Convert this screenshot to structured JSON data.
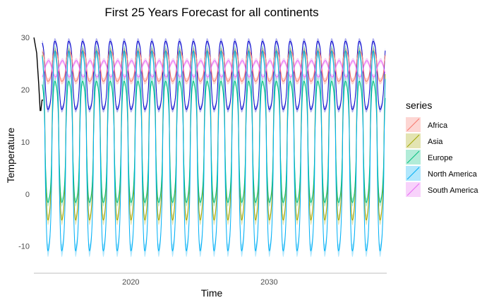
{
  "chart_data": {
    "type": "line",
    "title": "First 25 Years Forecast for all continents",
    "xlabel": "Time",
    "ylabel": "Temperature",
    "xlim": [
      2013.2,
      2038.6
    ],
    "ylim": [
      -14.5,
      31.5
    ],
    "x_ticks": [
      2020,
      2030
    ],
    "x_tick_labels": [
      "2020",
      "2030"
    ],
    "y_ticks": [
      -10,
      0,
      10,
      20,
      30
    ],
    "y_tick_labels": [
      "-10",
      "0",
      "10",
      "20",
      "30"
    ],
    "grid": false,
    "legend_title": "series",
    "legend_position": "right",
    "forecast_start": 2013.6,
    "forecast_end": 2038.4,
    "history": {
      "color": "#000000",
      "x": [
        2013.0,
        2013.2,
        2013.35,
        2013.45,
        2013.5,
        2013.58,
        2013.66
      ],
      "y": [
        30,
        27,
        21,
        16,
        16,
        18,
        18
      ]
    },
    "series": [
      {
        "name": "Africa",
        "color": "#f8766d",
        "low": 21.5,
        "high": 27.5,
        "peak": 0.55,
        "band": 0.6
      },
      {
        "name": "Asia",
        "color": "#a3a500",
        "low": -5.5,
        "high": 28.0,
        "peak": 0.55,
        "band": 1.0
      },
      {
        "name": "Europe",
        "color": "#00bf7d",
        "low": -2.0,
        "high": 22.0,
        "peak": 0.55,
        "band": 0.8
      },
      {
        "name": "North America",
        "color": "#00b0f6",
        "low": -11.5,
        "high": 28.0,
        "peak": 0.55,
        "band": 1.2
      },
      {
        "name": "South America",
        "color": "#e76bf3",
        "low": 22.5,
        "high": 25.5,
        "peak": 0.05,
        "band": 0.5
      }
    ],
    "extra_series": [
      {
        "color": "#0000cc",
        "low": 16.0,
        "high": 29.5,
        "peak": 0.55,
        "band": 0.6
      }
    ]
  }
}
